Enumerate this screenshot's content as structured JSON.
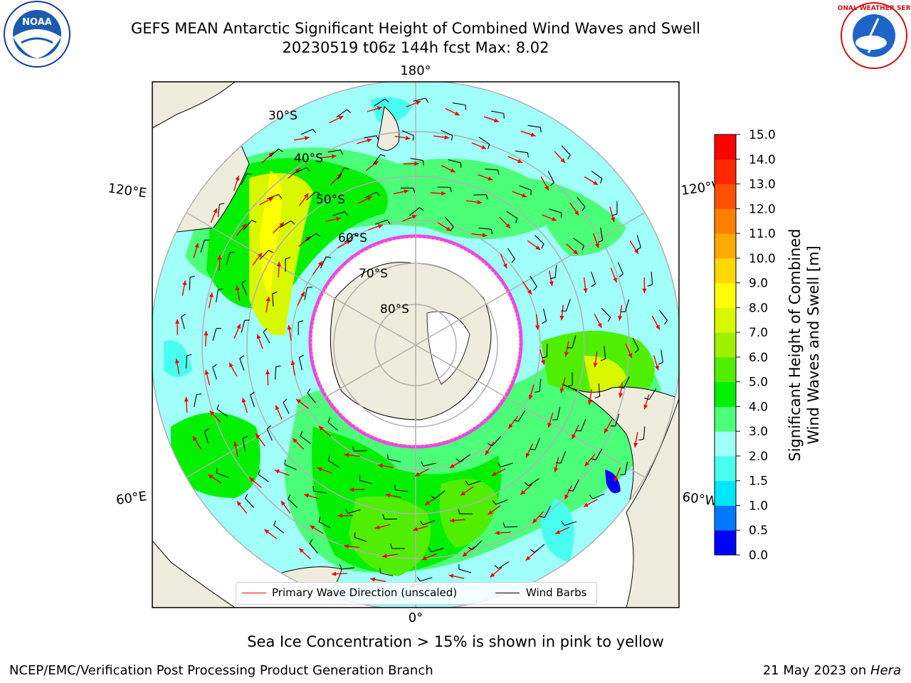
{
  "title": {
    "line1": "GEFS MEAN Antarctic Significant Height of Combined Wind Waves and Swell",
    "line2": "20230519 t06z 144h fcst   Max: 8.02"
  },
  "map": {
    "longitude_labels": {
      "top": "180°",
      "bottom": "0°",
      "left_upper": "120°E",
      "left_lower": "60°E",
      "right_upper": "120°W",
      "right_lower": "60°W"
    },
    "latitude_labels": [
      "30°S",
      "40°S",
      "50°S",
      "60°S",
      "70°S",
      "80°S"
    ],
    "colors": {
      "land": "#eeecdc",
      "ice_sheet": "#ffffff",
      "sea_ice_edge": "#ee44ee",
      "wave_arrow": "#ee0000",
      "wind_barb": "#000000",
      "grid": "#b0b0b0"
    }
  },
  "legend": {
    "wave_label": "Primary Wave Direction (unscaled)",
    "barb_label": "Wind Barbs"
  },
  "colorbar": {
    "label_line1": "Significant Height of Combined",
    "label_line2": "Wind Waves and Swell [m]",
    "ticks": [
      "15.0",
      "14.0",
      "13.0",
      "12.0",
      "11.0",
      "10.0",
      "9.0",
      "8.0",
      "7.0",
      "6.0",
      "5.0",
      "4.0",
      "3.0",
      "2.0",
      "1.5",
      "1.0",
      "0.5",
      "0.0"
    ],
    "colors": [
      "#0000ff",
      "#0078ff",
      "#00e6ff",
      "#48ffef",
      "#a0fff8",
      "#4cff78",
      "#00f000",
      "#50ee00",
      "#a0ee00",
      "#d8f800",
      "#ffff00",
      "#ffd800",
      "#ffaa00",
      "#ff8000",
      "#ff5000",
      "#ff2800",
      "#ff0000"
    ]
  },
  "caption": "Sea Ice Concentration > 15% is shown in pink to yellow",
  "footer": {
    "left": "NCEP/EMC/Verification Post Processing Product Generation Branch",
    "right_date": "21 May 2023 on ",
    "right_host": "Hera"
  },
  "logos": {
    "noaa_text": "NOAA",
    "nws_text": "NATIONAL WEATHER SERVICE"
  }
}
